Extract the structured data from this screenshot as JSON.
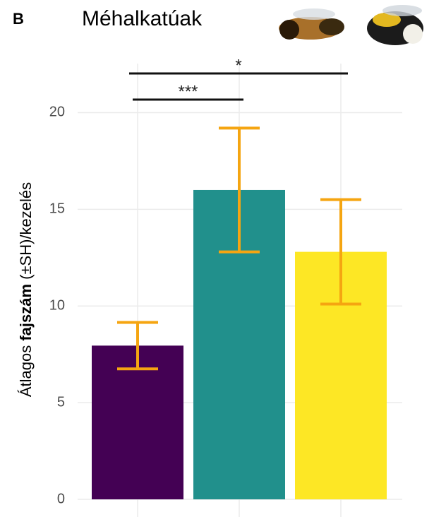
{
  "chart_data": {
    "type": "bar",
    "panel_label": "B",
    "title": "Méhalkatúak",
    "ylabel": [
      "Átlagos ",
      "fajszám",
      " (±SH)/kezelés"
    ],
    "categories": [
      null,
      null,
      null
    ],
    "values": [
      7.95,
      16,
      12.8
    ],
    "errors": [
      1.2,
      3.2,
      2.7
    ],
    "colors": [
      "#440154",
      "#21908C",
      "#FDE725"
    ],
    "error_color": "#F5A511",
    "significance": [
      "***",
      "*"
    ],
    "ylim": [
      0,
      22.5
    ],
    "yticks": [
      0,
      5,
      10,
      15,
      20
    ],
    "grid": true
  }
}
